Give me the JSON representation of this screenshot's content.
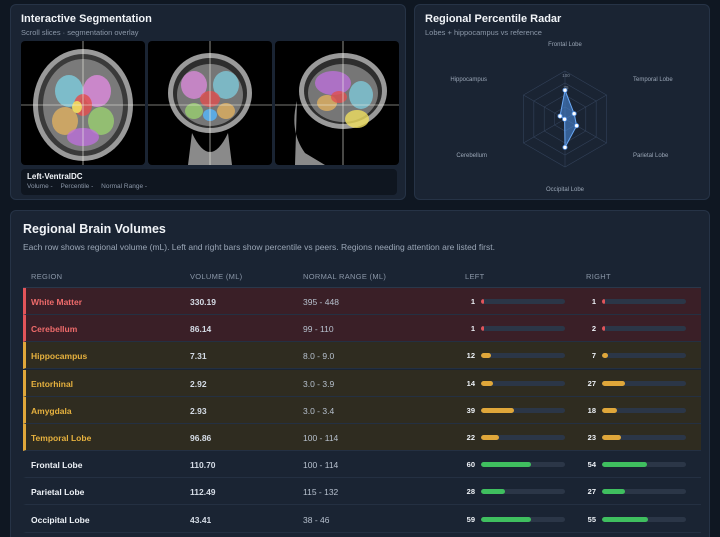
{
  "segmentation": {
    "title": "Interactive Segmentation",
    "subtitle": "Scroll slices · segmentation overlay",
    "slices": [
      "axial-slice",
      "coronal-slice",
      "sagittal-slice"
    ],
    "selected_region": "Left-VentralDC",
    "meta": {
      "volume": "Volume -",
      "percentile": "Percentile -",
      "normal_range": "Normal Range -"
    }
  },
  "radar": {
    "title": "Regional Percentile Radar",
    "subtitle": "Lobes + hippocampus vs reference",
    "axes": [
      "Frontal Lobe",
      "Temporal Lobe",
      "Parietal Lobe",
      "Occipital Lobe",
      "Cerebellum",
      "Hippocampus"
    ],
    "values": [
      60,
      22,
      28,
      59,
      1,
      12
    ],
    "max_label": "100",
    "ring_labels": [
      "75"
    ],
    "fill_color": "#4d8fe6"
  },
  "volumes": {
    "title": "Regional Brain Volumes",
    "subtitle": "Each row shows regional volume (mL). Left and right bars show percentile vs peers. Regions needing attention are listed first.",
    "headers": {
      "region": "REGION",
      "volume": "VOLUME (ML)",
      "range": "NORMAL RANGE (ML)",
      "left": "LEFT",
      "right": "RIGHT"
    },
    "colors": {
      "critical": "#e2545a",
      "warning": "#e0a73a",
      "normal": "#3fbf5f"
    },
    "rows": [
      {
        "region": "White Matter",
        "volume": "330.19",
        "range": "395 - 448",
        "left": 1,
        "right": 1,
        "status": "critical"
      },
      {
        "region": "Cerebellum",
        "volume": "86.14",
        "range": "99 - 110",
        "left": 1,
        "right": 2,
        "status": "critical"
      },
      {
        "region": "Hippocampus",
        "volume": "7.31",
        "range": "8.0 - 9.0",
        "left": 12,
        "right": 7,
        "status": "warning"
      },
      {
        "region": "Entorhinal",
        "volume": "2.92",
        "range": "3.0 - 3.9",
        "left": 14,
        "right": 27,
        "status": "warning"
      },
      {
        "region": "Amygdala",
        "volume": "2.93",
        "range": "3.0 - 3.4",
        "left": 39,
        "right": 18,
        "status": "warning"
      },
      {
        "region": "Temporal Lobe",
        "volume": "96.86",
        "range": "100 - 114",
        "left": 22,
        "right": 23,
        "status": "warning"
      },
      {
        "region": "Frontal Lobe",
        "volume": "110.70",
        "range": "100 - 114",
        "left": 60,
        "right": 54,
        "status": "normal"
      },
      {
        "region": "Parietal Lobe",
        "volume": "112.49",
        "range": "115 - 132",
        "left": 28,
        "right": 27,
        "status": "normal"
      },
      {
        "region": "Occipital Lobe",
        "volume": "43.41",
        "range": "38 - 46",
        "left": 59,
        "right": 55,
        "status": "normal"
      }
    ]
  }
}
